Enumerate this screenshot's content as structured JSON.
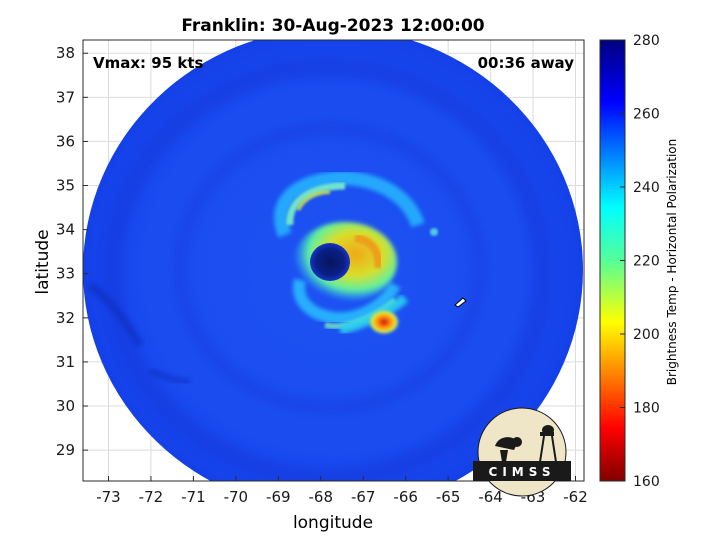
{
  "title": "Franklin: 30-Aug-2023 12:00:00",
  "annotations": {
    "vmax": "Vmax: 95 kts",
    "time_away": "00:36 away"
  },
  "axes": {
    "xlabel": "longitude",
    "ylabel": "latitude",
    "xlim": [
      -73.6,
      -61.8
    ],
    "ylim": [
      28.3,
      38.3
    ],
    "xticks": [
      -73,
      -72,
      -71,
      -70,
      -69,
      -68,
      -67,
      -66,
      -65,
      -64,
      -63,
      -62
    ],
    "yticks": [
      29,
      30,
      31,
      32,
      33,
      34,
      35,
      36,
      37,
      38
    ],
    "grid": true
  },
  "colorbar": {
    "label": "Brightness Temp - Horizontal Polarization",
    "range": [
      160,
      280
    ],
    "ticks": [
      160,
      180,
      200,
      220,
      240,
      260,
      280
    ],
    "colormap": "jet"
  },
  "logo": {
    "text": "CIMSS"
  },
  "storm": {
    "center_lon": -67.7,
    "center_lat": 33.3,
    "background_tb": 263,
    "eye_tb": 276,
    "eyewall_min_tb": 205,
    "rainband_min_tb": 180
  },
  "colors": {
    "swath_base": "#1a4ff0",
    "eye": "#0a1f86",
    "eyewall": "#e5cf1c",
    "rainband_core": "#d61a12"
  }
}
